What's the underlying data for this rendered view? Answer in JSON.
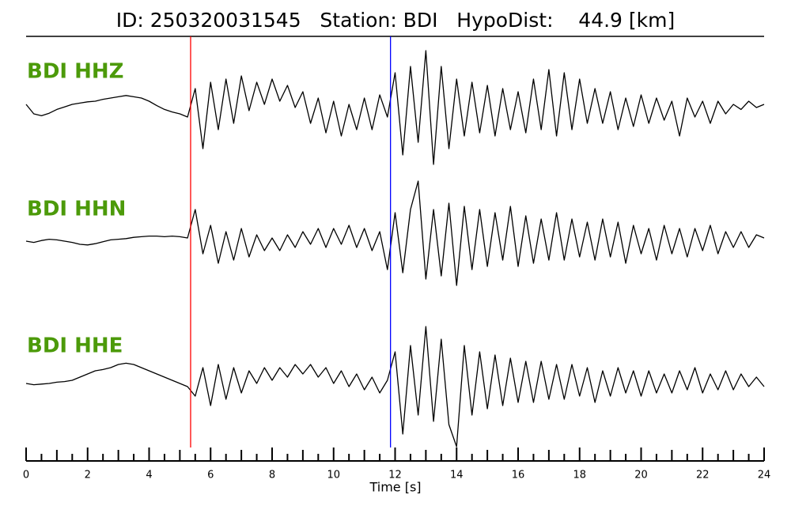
{
  "chart_data": {
    "type": "line",
    "title": "ID: 250320031545   Station: BDI   HypoDist:    44.9 [km]",
    "xlabel": "Time [s]",
    "xlim": [
      0,
      24
    ],
    "xticks": [
      0,
      2,
      4,
      6,
      8,
      10,
      12,
      14,
      16,
      18,
      20,
      22,
      24
    ],
    "minor_xticks": [
      0.5,
      1,
      1.5,
      2.5,
      3,
      3.5,
      4.5,
      5,
      5.5,
      6.5,
      7,
      7.5,
      8.5,
      9,
      9.5,
      10.5,
      11,
      11.5,
      12.5,
      13,
      13.5,
      14.5,
      15,
      15.5,
      16.5,
      17,
      17.5,
      18.5,
      19,
      19.5,
      20.5,
      21,
      21.5,
      22.5,
      23,
      23.5
    ],
    "ylim": [
      -1,
      1
    ],
    "label_color": "#4c9a0a",
    "markers": [
      {
        "x": 5.35,
        "color": "#ff0000"
      },
      {
        "x": 11.85,
        "color": "#0000ff"
      }
    ],
    "x": [
      0,
      0.25,
      0.5,
      0.75,
      1,
      1.25,
      1.5,
      1.75,
      2,
      2.25,
      2.5,
      2.75,
      3,
      3.25,
      3.5,
      3.75,
      4,
      4.25,
      4.5,
      4.75,
      5,
      5.25,
      5.5,
      5.75,
      6,
      6.25,
      6.5,
      6.75,
      7,
      7.25,
      7.5,
      7.75,
      8,
      8.25,
      8.5,
      8.75,
      9,
      9.25,
      9.5,
      9.75,
      10,
      10.25,
      10.5,
      10.75,
      11,
      11.25,
      11.5,
      11.75,
      12,
      12.25,
      12.5,
      12.75,
      13,
      13.25,
      13.5,
      13.75,
      14,
      14.25,
      14.5,
      14.75,
      15,
      15.25,
      15.5,
      15.75,
      16,
      16.25,
      16.5,
      16.75,
      17,
      17.25,
      17.5,
      17.75,
      18,
      18.25,
      18.5,
      18.75,
      19,
      19.25,
      19.5,
      19.75,
      20,
      20.25,
      20.5,
      20.75,
      21,
      21.25,
      21.5,
      21.75,
      22,
      22.25,
      22.5,
      22.75,
      23,
      23.25,
      23.5,
      23.75,
      24
    ],
    "series": [
      {
        "name": "BDI HHZ",
        "color": "#000000",
        "values": [
          0.1,
          -0.05,
          -0.08,
          -0.04,
          0.02,
          0.06,
          0.1,
          0.12,
          0.14,
          0.15,
          0.18,
          0.2,
          0.22,
          0.24,
          0.22,
          0.2,
          0.15,
          0.08,
          0.02,
          -0.02,
          -0.05,
          -0.1,
          0.35,
          -0.6,
          0.45,
          -0.3,
          0.5,
          -0.2,
          0.55,
          0.0,
          0.45,
          0.1,
          0.5,
          0.15,
          0.4,
          0.05,
          0.3,
          -0.2,
          0.2,
          -0.35,
          0.15,
          -0.4,
          0.1,
          -0.3,
          0.2,
          -0.3,
          0.25,
          -0.1,
          0.6,
          -0.7,
          0.7,
          -0.5,
          0.95,
          -0.85,
          0.7,
          -0.6,
          0.5,
          -0.4,
          0.45,
          -0.35,
          0.4,
          -0.4,
          0.35,
          -0.3,
          0.3,
          -0.35,
          0.5,
          -0.3,
          0.65,
          -0.4,
          0.6,
          -0.3,
          0.5,
          -0.2,
          0.35,
          -0.2,
          0.3,
          -0.3,
          0.2,
          -0.25,
          0.25,
          -0.2,
          0.2,
          -0.15,
          0.15,
          -0.4,
          0.2,
          -0.1,
          0.15,
          -0.2,
          0.15,
          -0.05,
          0.1,
          0.02,
          0.15,
          0.05,
          0.1
        ]
      },
      {
        "name": "BDI HHN",
        "color": "#000000",
        "values": [
          0,
          -0.02,
          0.01,
          0.03,
          0.02,
          0,
          -0.02,
          -0.05,
          -0.06,
          -0.04,
          -0.01,
          0.02,
          0.03,
          0.04,
          0.06,
          0.07,
          0.08,
          0.08,
          0.07,
          0.08,
          0.07,
          0.05,
          0.5,
          -0.2,
          0.25,
          -0.35,
          0.15,
          -0.3,
          0.2,
          -0.25,
          0.1,
          -0.15,
          0.05,
          -0.15,
          0.1,
          -0.1,
          0.15,
          -0.05,
          0.2,
          -0.1,
          0.2,
          -0.05,
          0.25,
          -0.1,
          0.2,
          -0.15,
          0.15,
          -0.45,
          0.45,
          -0.5,
          0.5,
          0.95,
          -0.6,
          0.5,
          -0.55,
          0.6,
          -0.7,
          0.55,
          -0.45,
          0.5,
          -0.4,
          0.45,
          -0.3,
          0.55,
          -0.4,
          0.4,
          -0.35,
          0.35,
          -0.3,
          0.45,
          -0.3,
          0.35,
          -0.25,
          0.3,
          -0.3,
          0.35,
          -0.25,
          0.3,
          -0.35,
          0.25,
          -0.2,
          0.2,
          -0.3,
          0.25,
          -0.2,
          0.2,
          -0.25,
          0.2,
          -0.15,
          0.25,
          -0.2,
          0.15,
          -0.1,
          0.15,
          -0.1,
          0.1,
          0.05
        ]
      },
      {
        "name": "BDI HHE",
        "color": "#000000",
        "values": [
          0,
          -0.02,
          -0.01,
          0.0,
          0.02,
          0.03,
          0.05,
          0.1,
          0.15,
          0.2,
          0.22,
          0.25,
          0.3,
          0.32,
          0.3,
          0.25,
          0.2,
          0.15,
          0.1,
          0.05,
          0.0,
          -0.05,
          -0.2,
          0.25,
          -0.35,
          0.3,
          -0.25,
          0.25,
          -0.15,
          0.2,
          0.0,
          0.25,
          0.05,
          0.25,
          0.1,
          0.3,
          0.15,
          0.3,
          0.1,
          0.25,
          0.0,
          0.2,
          -0.05,
          0.15,
          -0.1,
          0.1,
          -0.15,
          0.05,
          0.5,
          -0.8,
          0.6,
          -0.5,
          0.9,
          -0.6,
          0.7,
          -0.65,
          -1.0,
          0.6,
          -0.5,
          0.5,
          -0.4,
          0.45,
          -0.35,
          0.4,
          -0.3,
          0.35,
          -0.3,
          0.35,
          -0.25,
          0.3,
          -0.25,
          0.3,
          -0.2,
          0.25,
          -0.3,
          0.2,
          -0.2,
          0.25,
          -0.15,
          0.2,
          -0.2,
          0.2,
          -0.15,
          0.15,
          -0.15,
          0.2,
          -0.1,
          0.25,
          -0.15,
          0.15,
          -0.1,
          0.2,
          -0.1,
          0.15,
          -0.05,
          0.1,
          -0.05
        ]
      }
    ]
  }
}
